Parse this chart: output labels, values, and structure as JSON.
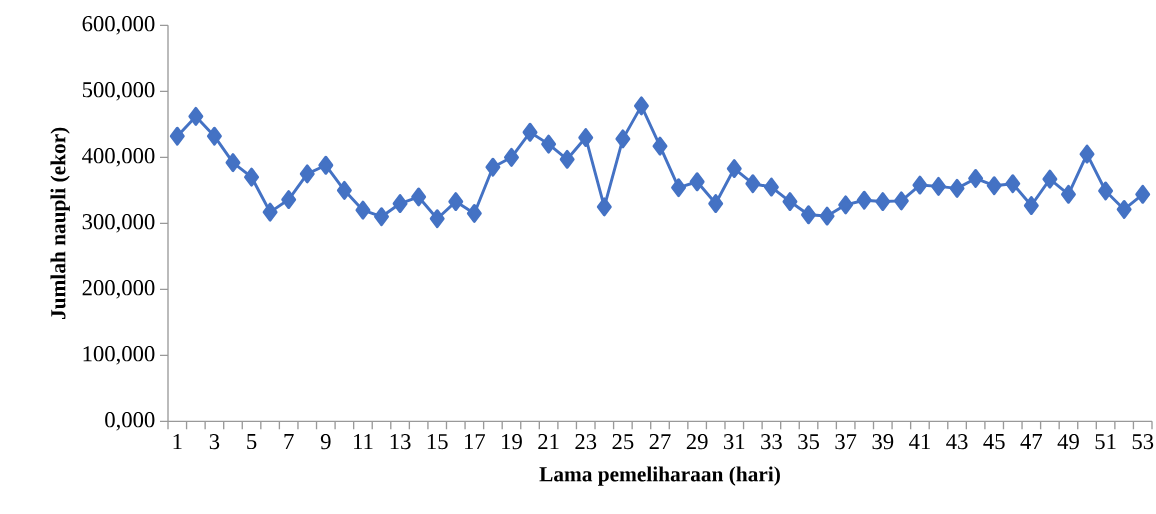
{
  "chart_data": {
    "type": "line",
    "xlabel": "Lama pemeliharaan (hari)",
    "ylabel": "Jumlah naupli (ekor)",
    "categories": [
      "1",
      null,
      "3",
      null,
      "5",
      null,
      "7",
      null,
      "9",
      null,
      "11",
      null,
      "13",
      null,
      "15",
      null,
      "17",
      null,
      "19",
      null,
      "21",
      null,
      "23",
      null,
      "25",
      null,
      "27",
      null,
      "29",
      null,
      "31",
      null,
      "33",
      null,
      "35",
      null,
      "37",
      null,
      "39",
      null,
      "41",
      null,
      "43",
      null,
      "45",
      null,
      "47",
      null,
      "49",
      null,
      "51",
      null,
      "53"
    ],
    "values": [
      432000,
      462000,
      432000,
      392000,
      370000,
      317000,
      336000,
      375000,
      388000,
      350000,
      320000,
      310000,
      330000,
      340000,
      307000,
      333000,
      315000,
      385000,
      400000,
      438000,
      420000,
      397000,
      430000,
      325000,
      428000,
      478000,
      417000,
      354000,
      363000,
      330000,
      383000,
      360000,
      355000,
      333000,
      313000,
      311000,
      328000,
      335000,
      333000,
      334000,
      358000,
      356000,
      353000,
      368000,
      357000,
      360000,
      327000,
      367000,
      344000,
      405000,
      349000,
      321000,
      344000
    ],
    "color": "#4472c4",
    "marker": "diamond",
    "line_style": "solid",
    "grid": false,
    "ylim": [
      0,
      600000
    ],
    "yticks": [
      {
        "value": 0,
        "label": "0,000"
      },
      {
        "value": 100000,
        "label": "100,000"
      },
      {
        "value": 200000,
        "label": "200,000"
      },
      {
        "value": 300000,
        "label": "300,000"
      },
      {
        "value": 400000,
        "label": "400,000"
      },
      {
        "value": 500000,
        "label": "500,000"
      },
      {
        "value": 600000,
        "label": "600,000"
      }
    ]
  }
}
